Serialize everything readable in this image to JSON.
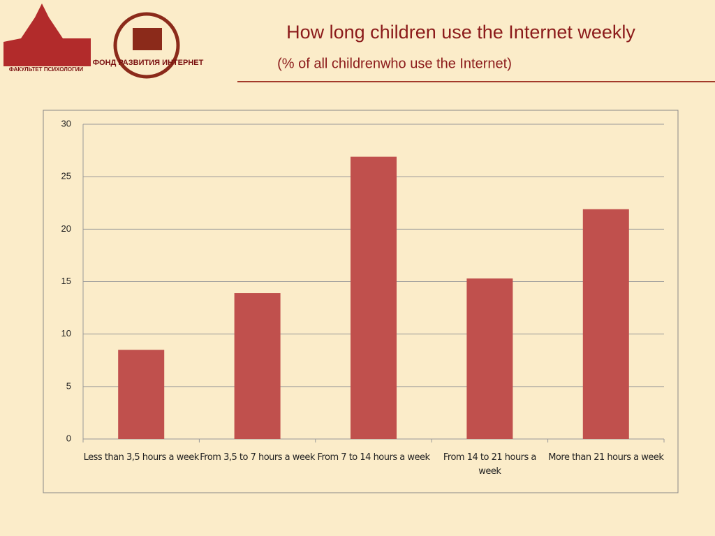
{
  "chart_data": {
    "type": "bar",
    "title": "How long children use the Internet weekly",
    "subtitle": "(% of all childrenwho use the Internet)",
    "categories": [
      "Less than 3,5 hours a week",
      "From 3,5 to 7 hours a week",
      "From 7 to 14 hours a week",
      "From 14 to 21 hours a week",
      "More than 21 hours a week"
    ],
    "values": [
      8.5,
      13.9,
      26.9,
      15.3,
      21.9
    ],
    "color": "#c0504d",
    "ylim": [
      0,
      30
    ],
    "yticks": [
      0,
      5,
      10,
      15,
      20,
      25,
      30
    ],
    "grid": true
  },
  "logos": [
    "ФАКУЛЬТЕТ ПСИХОЛОГИИ",
    "ФОНД РАЗВИТИЯ ИНТЕРНЕТ"
  ]
}
